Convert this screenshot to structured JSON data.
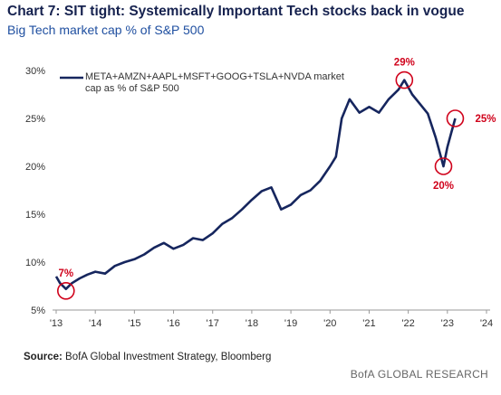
{
  "chart_data": {
    "type": "line",
    "title": "Chart 7: SIT tight: Systemically Important Tech stocks back in vogue",
    "subtitle": "Big Tech market cap % of S&P 500",
    "source_label": "Source:",
    "source": "BofA Global Investment Strategy, Bloomberg",
    "brand": "BofA GLOBAL RESEARCH",
    "series": [
      {
        "name": "META+AMZN+AAPL+MSFT+GOOG+TSLA+NVDA market cap as % of S&P 500",
        "color": "#16265e",
        "x": [
          2013.0,
          2013.1,
          2013.25,
          2013.4,
          2013.6,
          2013.8,
          2014.0,
          2014.25,
          2014.5,
          2014.75,
          2015.0,
          2015.25,
          2015.5,
          2015.75,
          2016.0,
          2016.25,
          2016.5,
          2016.75,
          2017.0,
          2017.25,
          2017.5,
          2017.75,
          2018.0,
          2018.25,
          2018.5,
          2018.75,
          2019.0,
          2019.25,
          2019.5,
          2019.75,
          2020.0,
          2020.15,
          2020.3,
          2020.5,
          2020.75,
          2021.0,
          2021.25,
          2021.5,
          2021.75,
          2021.9,
          2022.1,
          2022.3,
          2022.5,
          2022.7,
          2022.9,
          2023.0,
          2023.1,
          2023.2
        ],
        "values": [
          8.5,
          7.8,
          7.2,
          7.8,
          8.3,
          8.7,
          9.0,
          8.8,
          9.6,
          10.0,
          10.3,
          10.8,
          11.5,
          12.0,
          11.4,
          11.8,
          12.5,
          12.3,
          13.0,
          14.0,
          14.6,
          15.5,
          16.5,
          17.4,
          17.8,
          15.5,
          16.0,
          17.0,
          17.5,
          18.5,
          20.0,
          21.0,
          25.0,
          27.0,
          25.6,
          26.2,
          25.6,
          27.0,
          28.0,
          29.0,
          27.5,
          26.5,
          25.5,
          23.0,
          20.0,
          22.0,
          23.5,
          25.0
        ]
      }
    ],
    "annotations": [
      {
        "label": "7%",
        "x": 2013.25,
        "value": 7
      },
      {
        "label": "29%",
        "x": 2021.9,
        "value": 29
      },
      {
        "label": "20%",
        "x": 2022.9,
        "value": 20
      },
      {
        "label": "25%",
        "x": 2023.2,
        "value": 25
      }
    ],
    "annotation_color": "#d0021b",
    "xlim": [
      2013,
      2024
    ],
    "xticks": [
      {
        "value": 2013,
        "label": "'13"
      },
      {
        "value": 2014,
        "label": "'14"
      },
      {
        "value": 2015,
        "label": "'15"
      },
      {
        "value": 2016,
        "label": "'16"
      },
      {
        "value": 2017,
        "label": "'17"
      },
      {
        "value": 2018,
        "label": "'18"
      },
      {
        "value": 2019,
        "label": "'19"
      },
      {
        "value": 2020,
        "label": "'20"
      },
      {
        "value": 2021,
        "label": "'21"
      },
      {
        "value": 2022,
        "label": "'22"
      },
      {
        "value": 2023,
        "label": "'23"
      },
      {
        "value": 2024,
        "label": "'24"
      }
    ],
    "ylim": [
      5,
      30
    ],
    "yticks": [
      {
        "value": 5,
        "label": "5%"
      },
      {
        "value": 10,
        "label": "10%"
      },
      {
        "value": 15,
        "label": "15%"
      },
      {
        "value": 20,
        "label": "20%"
      },
      {
        "value": 25,
        "label": "25%"
      },
      {
        "value": 30,
        "label": "30%"
      }
    ],
    "grid": false
  }
}
